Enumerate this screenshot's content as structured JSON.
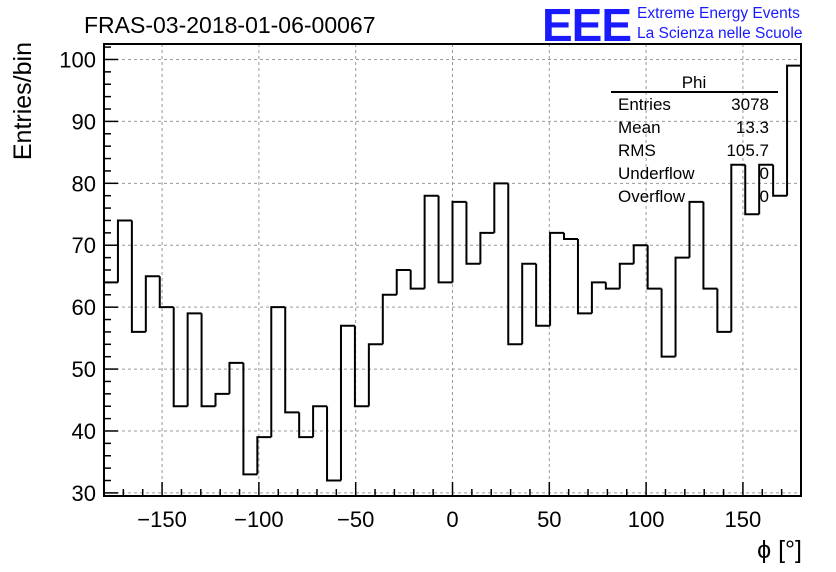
{
  "chart_data": {
    "type": "bar",
    "style": "histogram-step",
    "title": "FRAS-03-2018-01-06-00067",
    "xlabel": "ϕ [°]",
    "ylabel": "Entries/bin",
    "xlim": [
      -180,
      180
    ],
    "ylim": [
      29.5,
      102.5
    ],
    "grid": true,
    "bin_width": 7.2,
    "bin_edges_start": -180,
    "x_ticks": [
      -150,
      -100,
      -50,
      0,
      50,
      100,
      150
    ],
    "x_tick_labels": [
      "−150",
      "−100",
      "−50",
      "0",
      "50",
      "100",
      "150"
    ],
    "y_ticks": [
      30,
      40,
      50,
      60,
      70,
      80,
      90,
      100
    ],
    "y_tick_labels": [
      "30",
      "40",
      "50",
      "60",
      "70",
      "80",
      "90",
      "100"
    ],
    "values": [
      64,
      74,
      56,
      65,
      60,
      44,
      59,
      44,
      46,
      51,
      33,
      39,
      60,
      43,
      39,
      44,
      32,
      57,
      44,
      54,
      62,
      66,
      63,
      78,
      64,
      77,
      67,
      72,
      80,
      54,
      67,
      57,
      72,
      71,
      59,
      64,
      63,
      67,
      70,
      63,
      52,
      68,
      77,
      63,
      56,
      83,
      75,
      83,
      78,
      99
    ],
    "stats_box": {
      "name": "Phi",
      "placement": "top-right",
      "rows": [
        {
          "label": "Entries",
          "value": "3078"
        },
        {
          "label": "Mean",
          "value": "13.3"
        },
        {
          "label": "RMS",
          "value": "105.7"
        },
        {
          "label": "Underflow",
          "value": "0"
        },
        {
          "label": "Overflow",
          "value": "0"
        }
      ]
    }
  },
  "logo": {
    "mark": "EEE",
    "line1": "Extreme Energy Events",
    "line2": "La Scienza nelle Scuole"
  },
  "colors": {
    "logo": "#1a1aff",
    "line": "#000000",
    "grid": "#9a9a9a"
  }
}
